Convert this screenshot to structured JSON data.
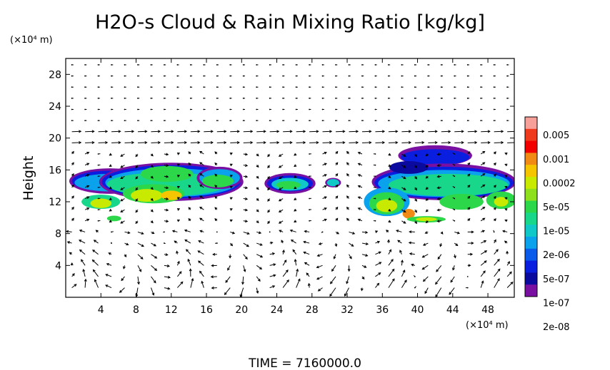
{
  "title": "H2O-s Cloud & Rain Mixing Ratio [kg/kg]",
  "footer": "TIME = 7160000.0",
  "chart_data": {
    "type": "heatmap",
    "title": "H2O-s Cloud & Rain Mixing Ratio [kg/kg]",
    "xlabel": "",
    "ylabel": "Height",
    "x_unit": "(×10⁴ m)",
    "y_unit": "(×10⁴ m)",
    "xlim": [
      0,
      51
    ],
    "ylim": [
      0,
      30
    ],
    "x_ticks": [
      4,
      8,
      12,
      16,
      20,
      24,
      28,
      32,
      36,
      40,
      44,
      48
    ],
    "y_ticks": [
      4,
      8,
      12,
      16,
      20,
      24,
      28
    ],
    "overlay": "wind vectors",
    "colorbar": {
      "labels": [
        "0.005",
        "0.001",
        "0.0002",
        "5e-05",
        "1e-05",
        "2e-06",
        "5e-07",
        "1e-07",
        "2e-08"
      ],
      "colors": [
        "#f7a09a",
        "#f03a1e",
        "#f20000",
        "#f08a14",
        "#f5c600",
        "#c8ea00",
        "#8ee01c",
        "#2cd84a",
        "#18d68a",
        "#10c8c8",
        "#0aa2ec",
        "#0a5aec",
        "#0a1ee0",
        "#0a0a9e",
        "#7a10a2"
      ]
    },
    "cloud_regions": [
      {
        "x": [
          1,
          20
        ],
        "y": [
          8.5,
          18.5
        ],
        "max_level": "0.0002"
      },
      {
        "x": [
          23,
          28.5
        ],
        "y": [
          13,
          15.5
        ],
        "max_level": "1e-05"
      },
      {
        "x": [
          29.5,
          31
        ],
        "y": [
          13.5,
          15
        ],
        "max_level": "1e-05"
      },
      {
        "x": [
          33,
          51
        ],
        "y": [
          9.5,
          19
        ],
        "max_level": "0.0002"
      }
    ]
  }
}
